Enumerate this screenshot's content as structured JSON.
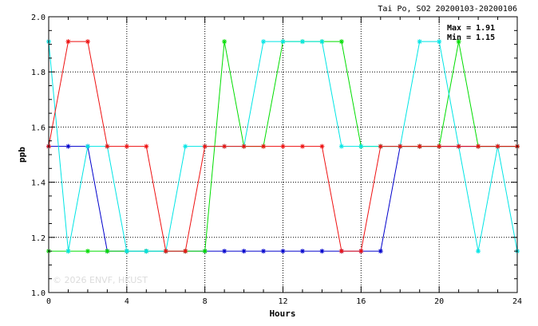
{
  "chart_data": {
    "type": "line",
    "title": "Tai Po, SO2 20200103-20200106",
    "xlabel": "Hours",
    "ylabel": "ppb",
    "xlim": [
      0,
      24
    ],
    "ylim": [
      1.0,
      2.0
    ],
    "xticks": [
      0,
      4,
      8,
      12,
      16,
      20,
      24
    ],
    "xtick_labels": [
      "0",
      "4",
      "8",
      "12",
      "16",
      "20",
      "24"
    ],
    "yticks": [
      1.0,
      1.2,
      1.4,
      1.6,
      1.8,
      2.0
    ],
    "ytick_labels": [
      "1.0",
      "1.2",
      "1.4",
      "1.6",
      "1.8",
      "2.0"
    ],
    "grid": true,
    "stats": {
      "max": "Max = 1.91",
      "min": "Min = 1.15"
    },
    "watermark": "© 2026  ENVF, HKUST",
    "x": [
      0,
      1,
      2,
      3,
      4,
      5,
      6,
      7,
      8,
      9,
      10,
      11,
      12,
      13,
      14,
      15,
      16,
      17,
      18,
      19,
      20,
      21,
      22,
      23,
      24
    ],
    "series": [
      {
        "color": "#0000cc",
        "values": [
          1.53,
          1.53,
          1.53,
          1.15,
          1.15,
          1.15,
          1.15,
          1.15,
          1.15,
          1.15,
          1.15,
          1.15,
          1.15,
          1.15,
          1.15,
          1.15,
          1.15,
          1.15,
          1.53,
          1.53,
          1.53,
          1.53,
          1.53,
          1.53,
          1.53
        ]
      },
      {
        "color": "#00dd00",
        "values": [
          1.15,
          1.15,
          1.15,
          1.15,
          1.15,
          1.15,
          1.15,
          1.15,
          1.15,
          1.91,
          1.53,
          1.53,
          1.91,
          1.91,
          1.91,
          1.91,
          1.53,
          1.53,
          1.53,
          1.53,
          1.53,
          1.91,
          1.53,
          1.53,
          1.53
        ]
      },
      {
        "color": "#00e5e5",
        "values": [
          1.91,
          1.15,
          1.53,
          1.53,
          1.15,
          1.15,
          1.15,
          1.53,
          1.53,
          1.53,
          1.53,
          1.91,
          1.91,
          1.91,
          1.91,
          1.53,
          1.53,
          1.53,
          1.53,
          1.91,
          1.91,
          1.53,
          1.15,
          1.53,
          1.15
        ]
      },
      {
        "color": "#ee1111",
        "values": [
          1.53,
          1.91,
          1.91,
          1.53,
          1.53,
          1.53,
          1.15,
          1.15,
          1.53,
          1.53,
          1.53,
          1.53,
          1.53,
          1.53,
          1.53,
          1.15,
          1.15,
          1.53,
          1.53,
          1.53,
          1.53,
          1.53,
          1.53,
          1.53,
          1.53
        ]
      }
    ]
  }
}
